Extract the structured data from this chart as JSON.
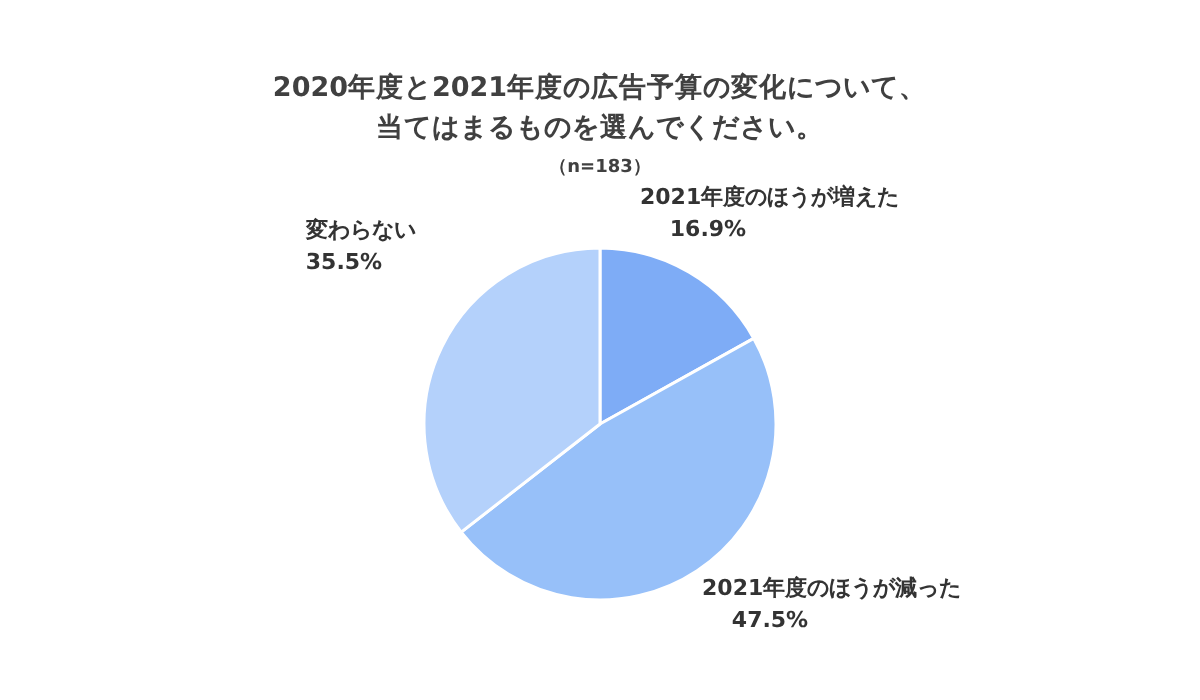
{
  "chart_data": {
    "type": "pie",
    "title": "2020年度と2021年度の広告予算の変化について、当てはまるものを選んでください。",
    "subtitle": "（n=183）",
    "categories": [
      "2021年度のほうが増えた",
      "2021年度のほうが減った",
      "変わらない"
    ],
    "values": [
      16.9,
      47.5,
      35.5
    ],
    "colors": [
      "#7eacf6",
      "#97c0f9",
      "#b4d1fb"
    ],
    "value_labels": [
      "16.9%",
      "47.5%",
      "35.5%"
    ]
  }
}
